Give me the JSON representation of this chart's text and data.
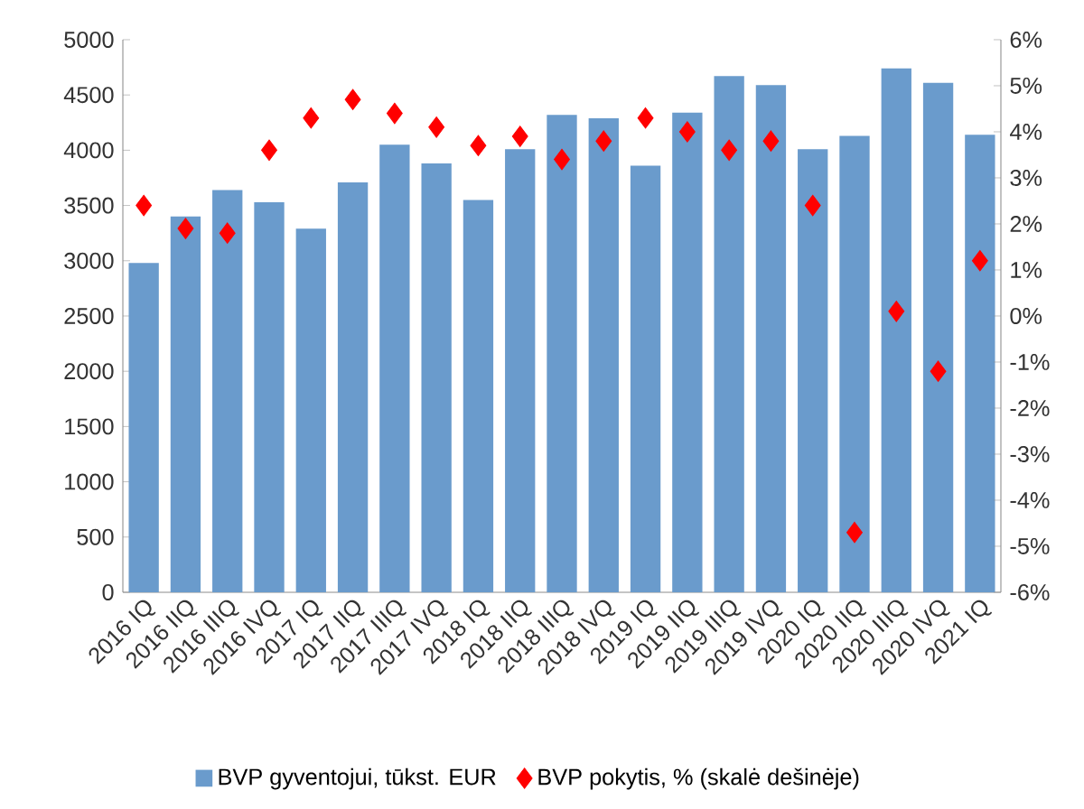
{
  "chart_data": {
    "type": "bar",
    "categories": [
      "2016 IQ",
      "2016 IIQ",
      "2016 IIIQ",
      "2016 IVQ",
      "2017 IQ",
      "2017 IIQ",
      "2017 IIIQ",
      "2017 IVQ",
      "2018 IQ",
      "2018 IIQ",
      "2018 IIIQ",
      "2018 IVQ",
      "2019 IQ",
      "2019 IIQ",
      "2019 IIIQ",
      "2019 IVQ",
      "2020 IQ",
      "2020 IIQ",
      "2020 IIIQ",
      "2020 IVQ",
      "2021 IQ"
    ],
    "series": [
      {
        "name": "BVP gyventojui, tūkst. EUR",
        "type": "bar",
        "color": "#6a9bcc",
        "values": [
          2980,
          3400,
          3640,
          3530,
          3290,
          3710,
          4050,
          3880,
          3550,
          4010,
          4320,
          4290,
          3860,
          4340,
          4670,
          4590,
          4010,
          4130,
          4740,
          4610,
          4140
        ]
      },
      {
        "name": "BVP pokytis, % (skalė dešinėje)",
        "type": "scatter",
        "axis": "y2",
        "marker": "diamond",
        "color": "#ff0000",
        "values": [
          2.4,
          1.9,
          1.8,
          3.6,
          4.3,
          4.7,
          4.4,
          4.1,
          3.7,
          3.9,
          3.4,
          3.8,
          4.3,
          4.0,
          3.6,
          3.8,
          2.4,
          -4.7,
          0.1,
          -1.2,
          1.2
        ]
      }
    ],
    "ylim": [
      0,
      5000
    ],
    "yticks": [
      0,
      500,
      1000,
      1500,
      2000,
      2500,
      3000,
      3500,
      4000,
      4500,
      5000
    ],
    "y2lim": [
      -6,
      6
    ],
    "y2ticks": [
      {
        "value": -6,
        "label": "-6%"
      },
      {
        "value": -5,
        "label": "-5%"
      },
      {
        "value": -4,
        "label": "-4%"
      },
      {
        "value": -3,
        "label": "-3%"
      },
      {
        "value": -2,
        "label": "-2%"
      },
      {
        "value": -1,
        "label": "-1%"
      },
      {
        "value": 0,
        "label": "0%"
      },
      {
        "value": 1,
        "label": "1%"
      },
      {
        "value": 2,
        "label": "2%"
      },
      {
        "value": 3,
        "label": "3%"
      },
      {
        "value": 4,
        "label": "4%"
      },
      {
        "value": 5,
        "label": "5%"
      },
      {
        "value": 6,
        "label": "6%"
      }
    ],
    "grid": false,
    "legend": "bottom"
  }
}
